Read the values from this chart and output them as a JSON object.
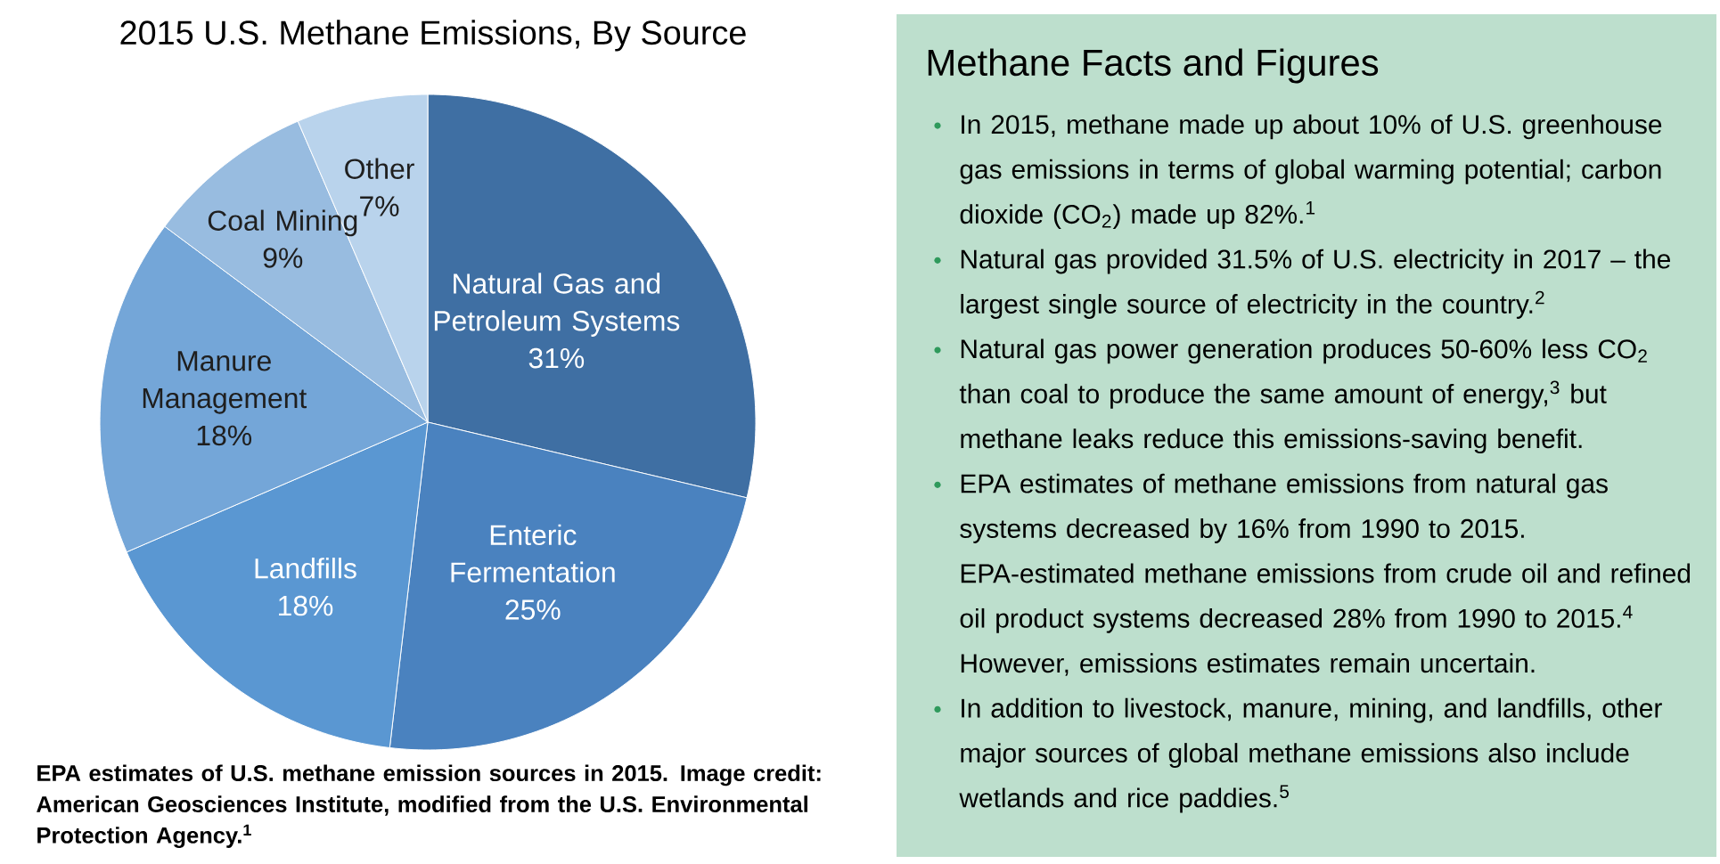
{
  "chart_data": [
    {
      "type": "pie",
      "title": "2015 U.S. Methane Emissions, By Source",
      "categories": [
        "Natural Gas and Petroleum Systems",
        "Enteric Fermentation",
        "Landfills",
        "Manure Management",
        "Coal Mining",
        "Other"
      ],
      "values": [
        31,
        25,
        18,
        18,
        9,
        7
      ],
      "value_labels": [
        "31%",
        "25%",
        "18%",
        "18%",
        "9%",
        "7%"
      ],
      "colors": [
        "#3f6fa3",
        "#4a82bf",
        "#5a97d2",
        "#74a6d8",
        "#98bce0",
        "#b9d3ec"
      ],
      "annotations": [
        "EPA estimates of U.S. methane emission sources in 2015. Image credit: American Geosciences Institute, modified from the U.S. Environmental Protection Agency.$^{1}$"
      ]
    },
    {
      "type": "other",
      "title": "Methane Facts and Figures",
      "annotations": [
        "In 2015, methane made up about 10% of U.S. greenhouse gas emissions in terms of global warming potential; carbon dioxide (CO$_{2}$) made up 82%.$^{1}$",
        "Natural gas provided 31.5% of U.S. electricity in 2017 – the largest single source of electricity in the country.$^{2}$",
        "Natural gas power generation produces 50-60% less CO$_{2}$ than coal to produce the same amount of energy,$^{3}$ but methane leaks reduce this emissions-saving benefit.",
        "EPA estimates of methane emissions from natural gas systems decreased by 16% from 1990 to 2015. EPA-estimated methane emissions from crude oil and refined oil product systems decreased 28% from 1990 to 2015.$^{4}$ However, emissions estimates remain uncertain.",
        "In addition to livestock, manure, mining, and landfills, other major sources of global methane emissions also include wetlands and rice paddies.$^{5}$"
      ]
    }
  ]
}
